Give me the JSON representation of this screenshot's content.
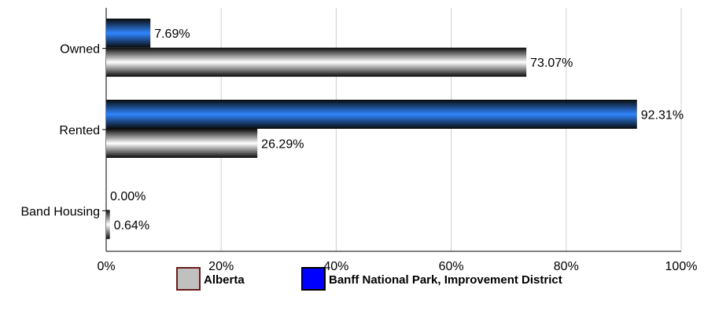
{
  "chart_data": {
    "type": "bar",
    "orientation": "horizontal",
    "categories": [
      "Owned",
      "Rented",
      "Band Housing"
    ],
    "series": [
      {
        "name": "Banff National Park, Improvement District",
        "values": [
          7.69,
          92.31,
          0.0
        ],
        "labels": [
          "7.69%",
          "92.31%",
          "0.00%"
        ],
        "color": "#1a6cff"
      },
      {
        "name": "Alberta",
        "values": [
          73.07,
          26.29,
          0.64
        ],
        "labels": [
          "73.07%",
          "26.29%",
          "0.64%"
        ],
        "color": "#c0c0c0"
      }
    ],
    "xlim": [
      0,
      100
    ],
    "x_ticks": [
      "0%",
      "20%",
      "40%",
      "60%",
      "80%",
      "100%"
    ],
    "grid": true,
    "legend_position": "bottom"
  },
  "legend": [
    {
      "label": "Alberta",
      "color": "#c0c0c0",
      "border": "#6b1a1a"
    },
    {
      "label": "Banff National Park, Improvement District",
      "color": "#0000ff",
      "border": "#000000"
    }
  ]
}
